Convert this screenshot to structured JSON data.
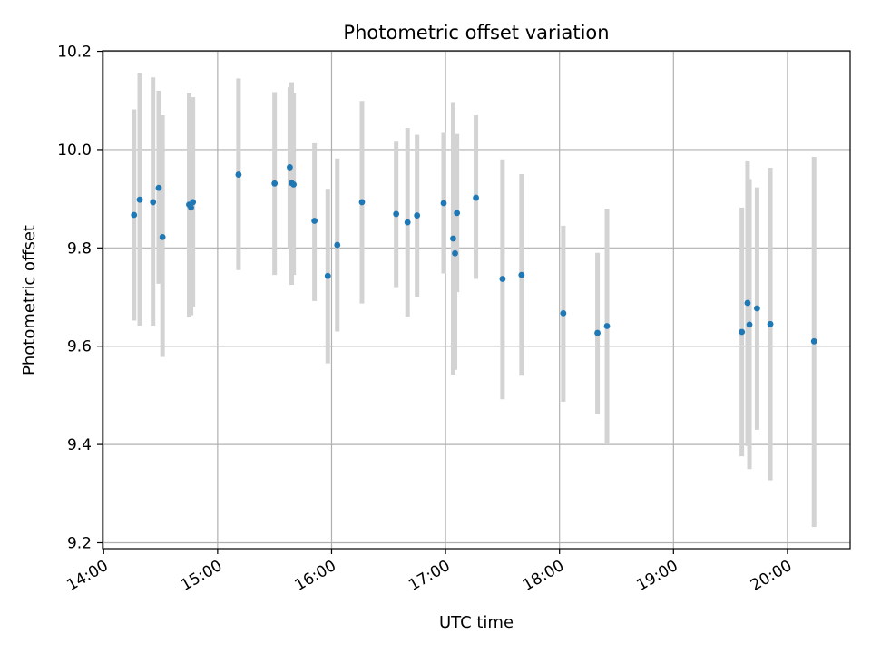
{
  "chart_data": {
    "type": "scatter",
    "title": "Photometric offset variation",
    "xlabel": "UTC time",
    "ylabel": "Photometric offset",
    "x_unit": "hours UTC",
    "xlim": [
      "14:00",
      "20:30"
    ],
    "ylim": [
      9.2,
      10.2
    ],
    "x_ticks": [
      "14:00",
      "15:00",
      "16:00",
      "17:00",
      "18:00",
      "19:00",
      "20:00"
    ],
    "y_ticks": [
      "9.2",
      "9.4",
      "9.6",
      "9.8",
      "10.0",
      "10.2"
    ],
    "grid": true,
    "point_color": "#1f77b4",
    "errorbar_color": "#d3d3d3",
    "points": [
      {
        "t": "14:16",
        "y": 9.867,
        "lo": 9.652,
        "hi": 10.082
      },
      {
        "t": "14:19",
        "y": 9.898,
        "lo": 9.642,
        "hi": 10.155
      },
      {
        "t": "14:26",
        "y": 9.893,
        "lo": 9.642,
        "hi": 10.147
      },
      {
        "t": "14:29",
        "y": 9.922,
        "lo": 9.727,
        "hi": 10.12
      },
      {
        "t": "14:31",
        "y": 9.822,
        "lo": 9.578,
        "hi": 10.07
      },
      {
        "t": "14:45",
        "y": 9.888,
        "lo": 9.659,
        "hi": 10.115
      },
      {
        "t": "14:46",
        "y": 9.882,
        "lo": 9.663,
        "hi": 10.107
      },
      {
        "t": "14:47",
        "y": 9.893,
        "lo": 9.68,
        "hi": 10.107
      },
      {
        "t": "15:11",
        "y": 9.949,
        "lo": 9.755,
        "hi": 10.145
      },
      {
        "t": "15:30",
        "y": 9.931,
        "lo": 9.745,
        "hi": 10.117
      },
      {
        "t": "15:38",
        "y": 9.964,
        "lo": 9.8,
        "hi": 10.127
      },
      {
        "t": "15:39",
        "y": 9.932,
        "lo": 9.725,
        "hi": 10.137
      },
      {
        "t": "15:40",
        "y": 9.929,
        "lo": 9.745,
        "hi": 10.115
      },
      {
        "t": "15:51",
        "y": 9.855,
        "lo": 9.692,
        "hi": 10.013
      },
      {
        "t": "15:58",
        "y": 9.743,
        "lo": 9.565,
        "hi": 9.92
      },
      {
        "t": "16:03",
        "y": 9.806,
        "lo": 9.63,
        "hi": 9.982
      },
      {
        "t": "16:16",
        "y": 9.893,
        "lo": 9.687,
        "hi": 10.099
      },
      {
        "t": "16:34",
        "y": 9.869,
        "lo": 9.72,
        "hi": 10.016
      },
      {
        "t": "16:40",
        "y": 9.852,
        "lo": 9.66,
        "hi": 10.044
      },
      {
        "t": "16:45",
        "y": 9.866,
        "lo": 9.7,
        "hi": 10.03
      },
      {
        "t": "16:59",
        "y": 9.891,
        "lo": 9.748,
        "hi": 10.034
      },
      {
        "t": "17:04",
        "y": 9.819,
        "lo": 9.542,
        "hi": 10.095
      },
      {
        "t": "17:05",
        "y": 9.789,
        "lo": 9.552,
        "hi": 10.025
      },
      {
        "t": "17:06",
        "y": 9.871,
        "lo": 9.71,
        "hi": 10.032
      },
      {
        "t": "17:16",
        "y": 9.902,
        "lo": 9.737,
        "hi": 10.07
      },
      {
        "t": "17:30",
        "y": 9.737,
        "lo": 9.492,
        "hi": 9.98
      },
      {
        "t": "17:40",
        "y": 9.745,
        "lo": 9.54,
        "hi": 9.95
      },
      {
        "t": "18:02",
        "y": 9.667,
        "lo": 9.487,
        "hi": 9.845
      },
      {
        "t": "18:20",
        "y": 9.627,
        "lo": 9.462,
        "hi": 9.79
      },
      {
        "t": "18:25",
        "y": 9.641,
        "lo": 9.4,
        "hi": 9.88
      },
      {
        "t": "19:36",
        "y": 9.629,
        "lo": 9.376,
        "hi": 9.882
      },
      {
        "t": "19:39",
        "y": 9.688,
        "lo": 9.397,
        "hi": 9.978
      },
      {
        "t": "19:40",
        "y": 9.644,
        "lo": 9.35,
        "hi": 9.94
      },
      {
        "t": "19:44",
        "y": 9.677,
        "lo": 9.43,
        "hi": 9.923
      },
      {
        "t": "19:51",
        "y": 9.645,
        "lo": 9.327,
        "hi": 9.963
      },
      {
        "t": "20:14",
        "y": 9.61,
        "lo": 9.232,
        "hi": 9.985
      }
    ]
  }
}
